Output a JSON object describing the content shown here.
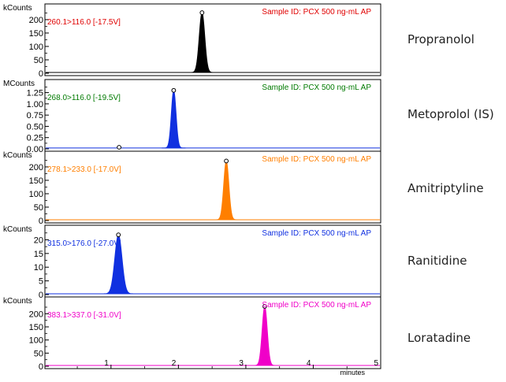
{
  "chart_data": {
    "type": "line",
    "x_axis": {
      "label": "minutes",
      "range": [
        0.02,
        5.0
      ],
      "ticks": [
        "1",
        "2",
        "3",
        "4",
        "5"
      ]
    },
    "panels": [
      {
        "compound": "Propranolol",
        "unit": "kCounts",
        "transition": "260.1>116.0 [-17.5V]",
        "sample_id": "Sample ID: PCX 500 ng-mL AP",
        "color": "#000000",
        "text_color": "#e00000",
        "ylim": [
          0,
          235
        ],
        "yticks": [
          0,
          50,
          100,
          150,
          200
        ],
        "ytick_labels": [
          "0",
          "50",
          "100",
          "150",
          "200"
        ],
        "baseline": 3,
        "peaks": [
          {
            "rt": 2.35,
            "height": 226,
            "width": 0.065,
            "marked": true
          }
        ]
      },
      {
        "compound": "Metoprolol (IS)",
        "unit": "MCounts",
        "transition": "268.0>116.0 [-19.5V]",
        "sample_id": "Sample ID: PCX 500 ng-mL AP",
        "color": "#1030e0",
        "text_color": "#007a00",
        "ylim": [
          0,
          1.4
        ],
        "yticks": [
          0,
          0.25,
          0.5,
          0.75,
          1.0,
          1.25
        ],
        "ytick_labels": [
          "0.00",
          "0.25",
          "0.50",
          "0.75",
          "1.00",
          "1.25"
        ],
        "baseline": 0.02,
        "peaks": [
          {
            "rt": 1.93,
            "height": 1.3,
            "width": 0.055,
            "marked": true
          },
          {
            "rt": 1.12,
            "height": 0.035,
            "width": 0.01,
            "marked": true
          }
        ]
      },
      {
        "compound": "Amitriptyline",
        "unit": "kCounts",
        "transition": "278.1>233.0 [-17.0V]",
        "sample_id": "Sample ID: PCX 500 ng-mL AP",
        "color": "#ff7f00",
        "text_color": "#ff7f00",
        "ylim": [
          0,
          235
        ],
        "yticks": [
          0,
          50,
          100,
          150,
          200
        ],
        "ytick_labels": [
          "0",
          "50",
          "100",
          "150",
          "200"
        ],
        "baseline": 3,
        "peaks": [
          {
            "rt": 2.71,
            "height": 222,
            "width": 0.06,
            "marked": true
          }
        ]
      },
      {
        "compound": "Ranitidine",
        "unit": "kCounts",
        "transition": "315.0>176.0 [-27.0V]",
        "sample_id": "Sample ID: PCX 500 ng-mL AP",
        "color": "#1030e0",
        "text_color": "#1030e0",
        "ylim": [
          0,
          23
        ],
        "yticks": [
          0,
          5,
          10,
          15,
          20
        ],
        "ytick_labels": [
          "0",
          "5",
          "10",
          "15",
          "20"
        ],
        "baseline": 0.3,
        "peaks": [
          {
            "rt": 1.11,
            "height": 21.8,
            "width": 0.085,
            "marked": true
          }
        ]
      },
      {
        "compound": "Loratadine",
        "unit": "kCounts",
        "transition": "383.1>337.0 [-31.0V]",
        "sample_id": "Sample ID: PCX 500 ng-mL AP",
        "color": "#f000c8",
        "text_color": "#f000c8",
        "ylim": [
          0,
          240
        ],
        "yticks": [
          0,
          50,
          100,
          150,
          200
        ],
        "ytick_labels": [
          "0",
          "50",
          "100",
          "150",
          "200"
        ],
        "baseline": 3,
        "peaks": [
          {
            "rt": 3.28,
            "height": 228,
            "width": 0.06,
            "marked": true
          }
        ]
      }
    ]
  }
}
